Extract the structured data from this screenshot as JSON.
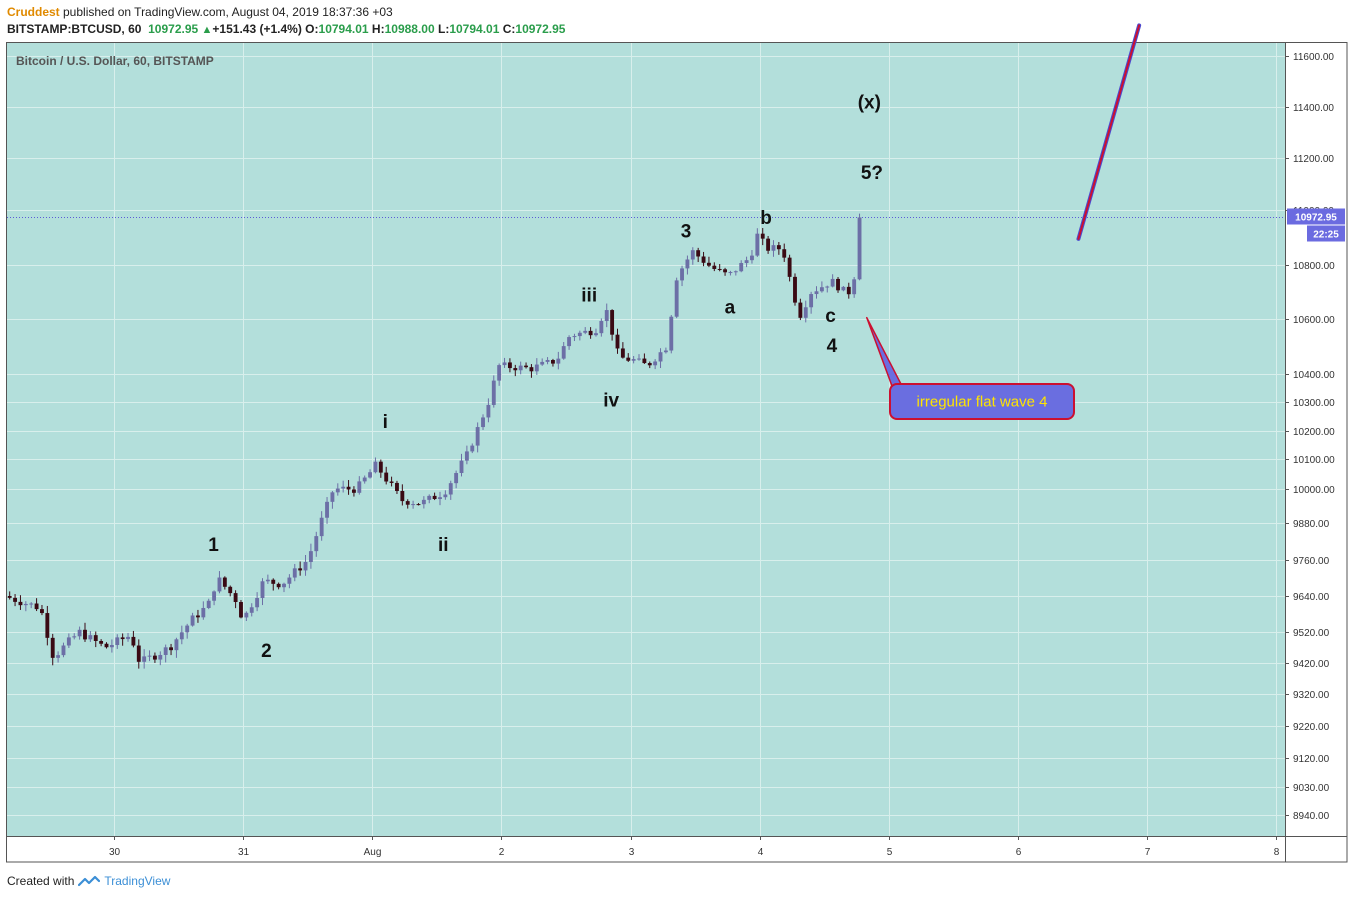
{
  "header": {
    "author": "Cruddest",
    "published_text": " published on TradingView.com, August 04, 2019 18:37:36 +03",
    "symbol": "BITSTAMP:BTCUSD, 60",
    "last": "10972.95",
    "change": "+151.43 (+1.4%)",
    "o_label": "O:",
    "o_value": "10794.01",
    "h_label": "H:",
    "h_value": "10988.00",
    "l_label": "L:",
    "l_value": "10794.01",
    "c_label": "C:",
    "c_value": "10972.95"
  },
  "footer": {
    "created_with": "Created with",
    "brand": "TradingView"
  },
  "colors": {
    "background": "#b3dfdb",
    "up_candle": "#6c6fa6",
    "down_candle": "#3a0a14",
    "price_line": "#5b5bd6",
    "price_tag": "#6b6be0",
    "arrow": "#cc1030",
    "callout_fill": "#6a6ee0",
    "callout_text": "#ffe400"
  },
  "chart_data": {
    "type": "candlestick",
    "title": "Bitcoin / U.S. Dollar, 60, BITSTAMP",
    "y_ticks": [
      11600,
      11400,
      11200,
      11000,
      10800,
      10600,
      10400,
      10300,
      10200,
      10100,
      10000,
      9880,
      9760,
      9640,
      9520,
      9420,
      9320,
      9220,
      9120,
      9030,
      8940
    ],
    "y_tick_labels": [
      "11600.00",
      "11400.00",
      "11200.00",
      "11000.00",
      "10800.00",
      "10600.00",
      "10400.00",
      "10300.00",
      "10200.00",
      "10100.00",
      "10000.00",
      "9880.00",
      "9760.00",
      "9640.00",
      "9520.00",
      "9420.00",
      "9320.00",
      "9220.00",
      "9120.00",
      "9030.00",
      "8940.00"
    ],
    "x_ticks": [
      "30",
      "31",
      "Aug",
      "2",
      "3",
      "4",
      "5",
      "6",
      "7",
      "8"
    ],
    "x_tick_days": [
      0,
      1,
      2,
      3,
      4,
      5,
      6,
      7,
      8,
      9
    ],
    "x_range_days": [
      -0.83,
      9.07
    ],
    "current_price": 10972.95,
    "current_price_label": "10972.95",
    "countdown": "22:25",
    "anchors": [
      {
        "t": -0.83,
        "p": 9640
      },
      {
        "t": -0.55,
        "p": 9600
      },
      {
        "t": -0.45,
        "p": 9440
      },
      {
        "t": -0.25,
        "p": 9520
      },
      {
        "t": -0.05,
        "p": 9470
      },
      {
        "t": 0.15,
        "p": 9510
      },
      {
        "t": 0.22,
        "p": 9420
      },
      {
        "t": 0.45,
        "p": 9470
      },
      {
        "t": 0.62,
        "p": 9560
      },
      {
        "t": 0.75,
        "p": 9610
      },
      {
        "t": 0.82,
        "p": 9700
      },
      {
        "t": 0.96,
        "p": 9630
      },
      {
        "t": 1.02,
        "p": 9560
      },
      {
        "t": 1.18,
        "p": 9690
      },
      {
        "t": 1.32,
        "p": 9680
      },
      {
        "t": 1.52,
        "p": 9760
      },
      {
        "t": 1.72,
        "p": 10000
      },
      {
        "t": 1.9,
        "p": 10000
      },
      {
        "t": 2.05,
        "p": 10080
      },
      {
        "t": 2.25,
        "p": 9960
      },
      {
        "t": 2.4,
        "p": 9950
      },
      {
        "t": 2.58,
        "p": 9990
      },
      {
        "t": 2.75,
        "p": 10110
      },
      {
        "t": 2.92,
        "p": 10300
      },
      {
        "t": 3.0,
        "p": 10430
      },
      {
        "t": 3.25,
        "p": 10420
      },
      {
        "t": 3.45,
        "p": 10450
      },
      {
        "t": 3.55,
        "p": 10540
      },
      {
        "t": 3.75,
        "p": 10560
      },
      {
        "t": 3.83,
        "p": 10640
      },
      {
        "t": 3.93,
        "p": 10460
      },
      {
        "t": 4.05,
        "p": 10450
      },
      {
        "t": 4.15,
        "p": 10430
      },
      {
        "t": 4.3,
        "p": 10500
      },
      {
        "t": 4.38,
        "p": 10760
      },
      {
        "t": 4.5,
        "p": 10850
      },
      {
        "t": 4.65,
        "p": 10790
      },
      {
        "t": 4.78,
        "p": 10760
      },
      {
        "t": 4.95,
        "p": 10830
      },
      {
        "t": 5.0,
        "p": 10910
      },
      {
        "t": 5.08,
        "p": 10860
      },
      {
        "t": 5.2,
        "p": 10860
      },
      {
        "t": 5.28,
        "p": 10700
      },
      {
        "t": 5.33,
        "p": 10610
      },
      {
        "t": 5.42,
        "p": 10700
      },
      {
        "t": 5.58,
        "p": 10740
      },
      {
        "t": 5.68,
        "p": 10700
      },
      {
        "t": 5.73,
        "p": 10700
      },
      {
        "t": 5.77,
        "p": 10800
      },
      {
        "t": 5.8,
        "p": 10973
      }
    ],
    "wave_labels": [
      {
        "text": "1",
        "t": 0.77,
        "p": 9790
      },
      {
        "text": "2",
        "t": 1.18,
        "p": 9440
      },
      {
        "text": "i",
        "t": 2.1,
        "p": 10210
      },
      {
        "text": "ii",
        "t": 2.55,
        "p": 9790
      },
      {
        "text": "iii",
        "t": 3.68,
        "p": 10665
      },
      {
        "text": "iv",
        "t": 3.85,
        "p": 10285
      },
      {
        "text": "3",
        "t": 4.43,
        "p": 10900
      },
      {
        "text": "a",
        "t": 4.77,
        "p": 10620
      },
      {
        "text": "b",
        "t": 5.05,
        "p": 10950
      },
      {
        "text": "c",
        "t": 5.55,
        "p": 10590
      },
      {
        "text": "4",
        "t": 5.56,
        "p": 10480
      },
      {
        "text": "5?",
        "t": 5.87,
        "p": 11120
      },
      {
        "text": "(x)",
        "t": 5.85,
        "p": 11395
      }
    ],
    "projection_line": {
      "from": {
        "t": 7.47,
        "p": 10895
      },
      "to": {
        "t": 7.94,
        "p": 11720
      }
    },
    "callout": {
      "text": "irregular flat wave 4",
      "pointer": {
        "t": 5.83,
        "p": 10605
      }
    }
  }
}
